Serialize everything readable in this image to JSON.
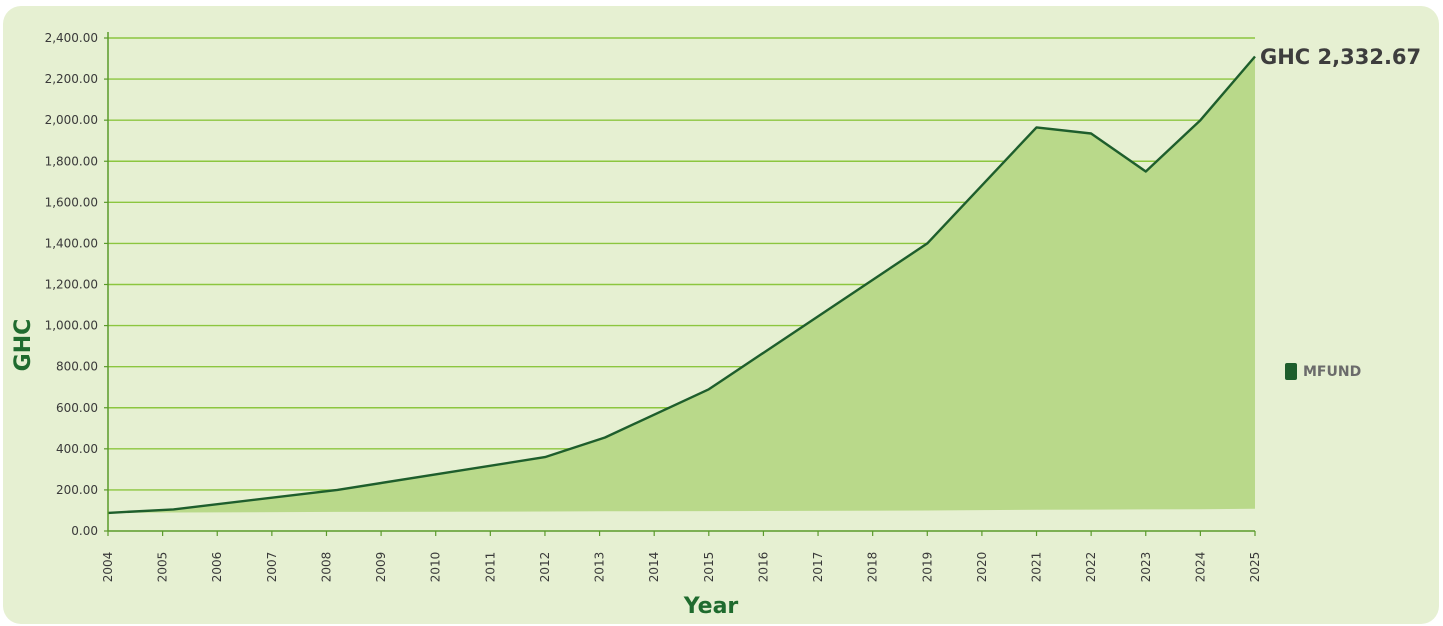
{
  "chart_data": {
    "type": "area",
    "title": "",
    "xlabel": "Year",
    "ylabel": "GHC",
    "ylim": [
      0,
      2400
    ],
    "y_ticks": [
      "0.00",
      "200.00",
      "400.00",
      "600.00",
      "800.00",
      "1,000.00",
      "1,200.00",
      "1,400.00",
      "1,600.00",
      "1,800.00",
      "2,000.00",
      "2,200.00",
      "2,400.00"
    ],
    "y_tick_values": [
      0,
      200,
      400,
      600,
      800,
      1000,
      1200,
      1400,
      1600,
      1800,
      2000,
      2200,
      2400
    ],
    "x_ticks": [
      "2004",
      "2005",
      "2006",
      "2007",
      "2008",
      "2009",
      "2010",
      "2011",
      "2012",
      "2013",
      "2014",
      "2015",
      "2016",
      "2017",
      "2018",
      "2019",
      "2020",
      "2021",
      "2022",
      "2023",
      "2024",
      "2025"
    ],
    "series": [
      {
        "name": "MFUND",
        "x": [
          2004,
          2005.2,
          2008.2,
          2012,
          2013.1,
          2015,
          2019,
          2021,
          2022,
          2023,
          2024,
          2025
        ],
        "values": [
          88,
          105,
          200,
          360,
          455,
          690,
          1400,
          1965,
          1935,
          1750,
          2000,
          2310
        ],
        "baseline": [
          88,
          90,
          93,
          95,
          96,
          97,
          100,
          103,
          104,
          105,
          106,
          108
        ]
      }
    ],
    "end_annotation": "GHC 2,332.67",
    "legend": {
      "position": "right",
      "label": "MFUND"
    },
    "grid": true,
    "colors": {
      "fill": "#b9d98a",
      "line": "#1e5e2c",
      "grid": "#8cc63f",
      "axis": "#5a9a2a",
      "background": "#e6f0d2",
      "legend_swatch": "#1e5e2c"
    }
  }
}
